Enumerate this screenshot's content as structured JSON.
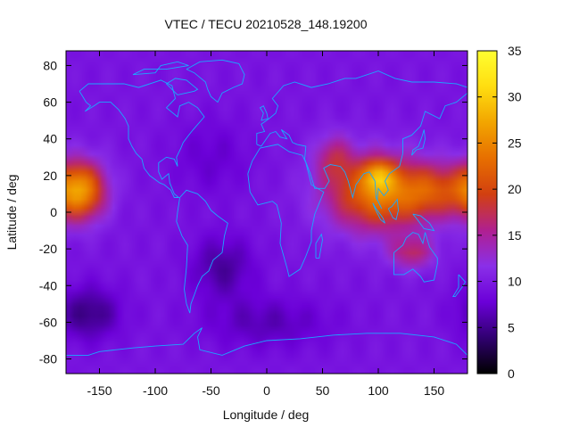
{
  "chart_data": {
    "type": "heatmap",
    "title": "VTEC / TECU 20210528_148.19200",
    "xlabel": "Longitude / deg",
    "ylabel": "Latitude / deg",
    "xlim": [
      -180,
      180
    ],
    "ylim": [
      -88,
      88
    ],
    "x_ticks": [
      -150,
      -100,
      -50,
      0,
      50,
      100,
      150
    ],
    "y_ticks": [
      -80,
      -60,
      -40,
      -20,
      0,
      20,
      40,
      60,
      80
    ],
    "colorbar": {
      "range": [
        0,
        35
      ],
      "ticks": [
        0,
        5,
        10,
        15,
        20,
        25,
        30,
        35
      ],
      "colormap": [
        "#000000",
        "#300070",
        "#6b00d8",
        "#8a2fe8",
        "#b02090",
        "#d24010",
        "#e76f00",
        "#f2a500",
        "#ffdd10",
        "#ffff30"
      ]
    },
    "field_model": {
      "background_tecu": 9.5,
      "features": [
        {
          "name": "pacific-anomaly",
          "lon": -168,
          "lat": 12,
          "amp_tecu": 16.5,
          "sigma_lon": 16,
          "sigma_lat": 11
        },
        {
          "name": "asia-anomaly-main",
          "lon": 100,
          "lat": 10,
          "amp_tecu": 14,
          "sigma_lon": 32,
          "sigma_lat": 14
        },
        {
          "name": "asia-anomaly-peak",
          "lon": 100,
          "lat": 20,
          "amp_tecu": 10,
          "sigma_lon": 10,
          "sigma_lat": 6
        },
        {
          "name": "asia-anomaly-east",
          "lon": 150,
          "lat": 12,
          "amp_tecu": 8,
          "sigma_lon": 22,
          "sigma_lat": 10
        },
        {
          "name": "australia-anomaly",
          "lon": 130,
          "lat": -22,
          "amp_tecu": 7,
          "sigma_lon": 14,
          "sigma_lat": 6
        },
        {
          "name": "middle-east-anomaly",
          "lon": 60,
          "lat": 30,
          "amp_tecu": 6,
          "sigma_lon": 12,
          "sigma_lat": 9
        },
        {
          "name": "south-atlantic-low",
          "lon": -40,
          "lat": -30,
          "amp_tecu": -4,
          "sigma_lon": 20,
          "sigma_lat": 12
        },
        {
          "name": "south-pacific-low",
          "lon": -160,
          "lat": -55,
          "amp_tecu": -5,
          "sigma_lon": 20,
          "sigma_lat": 10
        },
        {
          "name": "southern-ocean-low",
          "lon": 0,
          "lat": -60,
          "amp_tecu": -3,
          "sigma_lon": 40,
          "sigma_lat": 10
        },
        {
          "name": "north-atlantic-low",
          "lon": -50,
          "lat": 30,
          "amp_tecu": -2,
          "sigma_lon": 25,
          "sigma_lat": 15
        }
      ]
    },
    "coastlines": [
      {
        "name": "north-america",
        "points": [
          [
            -168,
            66
          ],
          [
            -160,
            70
          ],
          [
            -145,
            70
          ],
          [
            -128,
            70
          ],
          [
            -115,
            68
          ],
          [
            -95,
            72
          ],
          [
            -85,
            69
          ],
          [
            -82,
            62
          ],
          [
            -90,
            57
          ],
          [
            -80,
            52
          ],
          [
            -78,
            58
          ],
          [
            -70,
            60
          ],
          [
            -62,
            57
          ],
          [
            -56,
            52
          ],
          [
            -66,
            45
          ],
          [
            -70,
            42
          ],
          [
            -75,
            38
          ],
          [
            -77,
            35
          ],
          [
            -81,
            30
          ],
          [
            -80,
            25
          ],
          [
            -83,
            29
          ],
          [
            -90,
            30
          ],
          [
            -97,
            27
          ],
          [
            -97,
            22
          ],
          [
            -94,
            18
          ],
          [
            -88,
            21
          ],
          [
            -87,
            16
          ],
          [
            -83,
            10
          ],
          [
            -79,
            8
          ],
          [
            -83,
            8
          ],
          [
            -86,
            12
          ],
          [
            -92,
            15
          ],
          [
            -96,
            16
          ],
          [
            -105,
            20
          ],
          [
            -110,
            24
          ],
          [
            -112,
            29
          ],
          [
            -117,
            32
          ],
          [
            -121,
            36
          ],
          [
            -124,
            40
          ],
          [
            -124,
            47
          ],
          [
            -127,
            51
          ],
          [
            -133,
            56
          ],
          [
            -140,
            60
          ],
          [
            -150,
            60
          ],
          [
            -155,
            58
          ],
          [
            -163,
            55
          ],
          [
            -158,
            58
          ],
          [
            -162,
            60
          ],
          [
            -165,
            63
          ],
          [
            -168,
            66
          ]
        ]
      },
      {
        "name": "greenland",
        "points": [
          [
            -72,
            78
          ],
          [
            -60,
            82
          ],
          [
            -40,
            83
          ],
          [
            -25,
            81
          ],
          [
            -20,
            75
          ],
          [
            -22,
            70
          ],
          [
            -30,
            68
          ],
          [
            -40,
            65
          ],
          [
            -44,
            60
          ],
          [
            -50,
            63
          ],
          [
            -53,
            67
          ],
          [
            -55,
            71
          ],
          [
            -65,
            76
          ],
          [
            -72,
            78
          ]
        ]
      },
      {
        "name": "south-america",
        "points": [
          [
            -78,
            8
          ],
          [
            -72,
            12
          ],
          [
            -62,
            10
          ],
          [
            -55,
            6
          ],
          [
            -50,
            1
          ],
          [
            -44,
            -2
          ],
          [
            -35,
            -6
          ],
          [
            -38,
            -13
          ],
          [
            -40,
            -22
          ],
          [
            -48,
            -26
          ],
          [
            -52,
            -32
          ],
          [
            -58,
            -35
          ],
          [
            -62,
            -40
          ],
          [
            -65,
            -45
          ],
          [
            -68,
            -50
          ],
          [
            -69,
            -55
          ],
          [
            -72,
            -50
          ],
          [
            -74,
            -42
          ],
          [
            -72,
            -30
          ],
          [
            -71,
            -18
          ],
          [
            -76,
            -13
          ],
          [
            -81,
            -5
          ],
          [
            -80,
            0
          ],
          [
            -78,
            8
          ]
        ]
      },
      {
        "name": "africa",
        "points": [
          [
            -17,
            21
          ],
          [
            -13,
            28
          ],
          [
            -6,
            35
          ],
          [
            10,
            37
          ],
          [
            20,
            33
          ],
          [
            32,
            31
          ],
          [
            35,
            27
          ],
          [
            40,
            15
          ],
          [
            51,
            11
          ],
          [
            43,
            -1
          ],
          [
            40,
            -10
          ],
          [
            40,
            -16
          ],
          [
            35,
            -24
          ],
          [
            30,
            -31
          ],
          [
            20,
            -35
          ],
          [
            18,
            -30
          ],
          [
            12,
            -17
          ],
          [
            13,
            -6
          ],
          [
            9,
            4
          ],
          [
            5,
            6
          ],
          [
            -8,
            4
          ],
          [
            -15,
            11
          ],
          [
            -17,
            21
          ]
        ]
      },
      {
        "name": "eurasia",
        "points": [
          [
            -9,
            37
          ],
          [
            -9,
            43
          ],
          [
            -2,
            44
          ],
          [
            -5,
            48
          ],
          [
            2,
            51
          ],
          [
            8,
            54
          ],
          [
            10,
            58
          ],
          [
            5,
            62
          ],
          [
            15,
            69
          ],
          [
            25,
            71
          ],
          [
            40,
            68
          ],
          [
            55,
            70
          ],
          [
            70,
            73
          ],
          [
            80,
            73
          ],
          [
            100,
            77
          ],
          [
            115,
            73
          ],
          [
            130,
            71
          ],
          [
            150,
            71
          ],
          [
            170,
            70
          ],
          [
            180,
            68
          ],
          [
            180,
            65
          ],
          [
            170,
            60
          ],
          [
            160,
            58
          ],
          [
            155,
            51
          ],
          [
            142,
            55
          ],
          [
            138,
            47
          ],
          [
            130,
            42
          ],
          [
            122,
            40
          ],
          [
            122,
            32
          ],
          [
            119,
            25
          ],
          [
            110,
            21
          ],
          [
            106,
            17
          ],
          [
            109,
            12
          ],
          [
            105,
            9
          ],
          [
            100,
            13
          ],
          [
            99,
            7
          ],
          [
            103,
            2
          ],
          [
            98,
            8
          ],
          [
            97,
            17
          ],
          [
            92,
            22
          ],
          [
            87,
            21
          ],
          [
            80,
            15
          ],
          [
            77,
            8
          ],
          [
            73,
            17
          ],
          [
            70,
            22
          ],
          [
            66,
            25
          ],
          [
            57,
            26
          ],
          [
            51,
            24
          ],
          [
            56,
            17
          ],
          [
            52,
            13
          ],
          [
            43,
            13
          ],
          [
            39,
            21
          ],
          [
            34,
            29
          ],
          [
            35,
            36
          ],
          [
            27,
            37
          ],
          [
            23,
            38
          ],
          [
            20,
            42
          ],
          [
            13,
            45
          ],
          [
            18,
            40
          ],
          [
            12,
            41
          ],
          [
            8,
            44
          ],
          [
            3,
            43
          ],
          [
            -5,
            36
          ],
          [
            -9,
            37
          ]
        ]
      },
      {
        "name": "australia",
        "points": [
          [
            114,
            -22
          ],
          [
            114,
            -34
          ],
          [
            123,
            -34
          ],
          [
            131,
            -31
          ],
          [
            138,
            -35
          ],
          [
            141,
            -38
          ],
          [
            150,
            -37
          ],
          [
            153,
            -28
          ],
          [
            153,
            -25
          ],
          [
            146,
            -19
          ],
          [
            142,
            -11
          ],
          [
            140,
            -17
          ],
          [
            136,
            -12
          ],
          [
            131,
            -11
          ],
          [
            125,
            -14
          ],
          [
            122,
            -18
          ],
          [
            114,
            -22
          ]
        ]
      },
      {
        "name": "antarctica",
        "points": [
          [
            -180,
            -78
          ],
          [
            -160,
            -78
          ],
          [
            -150,
            -76
          ],
          [
            -120,
            -74
          ],
          [
            -100,
            -73
          ],
          [
            -75,
            -72
          ],
          [
            -65,
            -66
          ],
          [
            -58,
            -63
          ],
          [
            -62,
            -68
          ],
          [
            -60,
            -75
          ],
          [
            -40,
            -78
          ],
          [
            -20,
            -73
          ],
          [
            0,
            -70
          ],
          [
            30,
            -69
          ],
          [
            60,
            -67
          ],
          [
            90,
            -66
          ],
          [
            120,
            -66
          ],
          [
            150,
            -68
          ],
          [
            170,
            -72
          ],
          [
            180,
            -78
          ]
        ]
      },
      {
        "name": "borneo",
        "points": [
          [
            109,
            2
          ],
          [
            113,
            -3
          ],
          [
            116,
            -4
          ],
          [
            118,
            1
          ],
          [
            117,
            7
          ],
          [
            112,
            3
          ],
          [
            109,
            2
          ]
        ]
      },
      {
        "name": "sumatra",
        "points": [
          [
            95,
            5
          ],
          [
            98,
            2
          ],
          [
            104,
            -3
          ],
          [
            106,
            -6
          ],
          [
            102,
            -4
          ],
          [
            97,
            2
          ],
          [
            95,
            5
          ]
        ]
      },
      {
        "name": "new-guinea",
        "points": [
          [
            131,
            -1
          ],
          [
            138,
            -2
          ],
          [
            146,
            -6
          ],
          [
            150,
            -10
          ],
          [
            141,
            -9
          ],
          [
            135,
            -4
          ],
          [
            131,
            -1
          ]
        ]
      },
      {
        "name": "japan",
        "points": [
          [
            130,
            31
          ],
          [
            134,
            34
          ],
          [
            140,
            35
          ],
          [
            142,
            40
          ],
          [
            141,
            45
          ],
          [
            139,
            41
          ],
          [
            136,
            36
          ],
          [
            131,
            34
          ],
          [
            130,
            31
          ]
        ]
      },
      {
        "name": "uk",
        "points": [
          [
            -5,
            50
          ],
          [
            1,
            51
          ],
          [
            0,
            54
          ],
          [
            -3,
            58
          ],
          [
            -6,
            57
          ],
          [
            -3,
            54
          ],
          [
            -5,
            50
          ]
        ]
      },
      {
        "name": "madagascar",
        "points": [
          [
            44,
            -25
          ],
          [
            47,
            -25
          ],
          [
            50,
            -15
          ],
          [
            49,
            -12
          ],
          [
            44,
            -17
          ],
          [
            44,
            -25
          ]
        ]
      },
      {
        "name": "new-zealand",
        "points": [
          [
            172,
            -34
          ],
          [
            178,
            -38
          ],
          [
            175,
            -41
          ],
          [
            169,
            -46
          ],
          [
            167,
            -46
          ],
          [
            172,
            -41
          ],
          [
            172,
            -34
          ]
        ]
      },
      {
        "name": "baffin",
        "points": [
          [
            -80,
            64
          ],
          [
            -65,
            66
          ],
          [
            -62,
            67
          ],
          [
            -72,
            72
          ],
          [
            -82,
            73
          ],
          [
            -90,
            70
          ],
          [
            -80,
            64
          ]
        ]
      },
      {
        "name": "arctic-islands",
        "points": [
          [
            -120,
            75
          ],
          [
            -100,
            76
          ],
          [
            -95,
            80
          ],
          [
            -80,
            82
          ],
          [
            -70,
            80
          ],
          [
            -90,
            78
          ],
          [
            -110,
            78
          ],
          [
            -120,
            75
          ]
        ]
      }
    ]
  }
}
